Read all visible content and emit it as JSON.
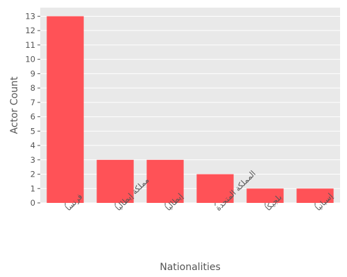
{
  "chart_data": {
    "type": "bar",
    "categories": [
      "فرنسا",
      "مملكة إيطاليا",
      "إيطاليا",
      "المملكة المتحدة",
      "بلجيكا",
      "إسبانيا"
    ],
    "values": [
      13,
      3,
      3,
      2,
      1,
      1
    ],
    "xlabel": "Nationalities",
    "ylabel": "Actor Count",
    "ylim": [
      0,
      13.6
    ],
    "yticks": [
      0,
      1,
      2,
      3,
      4,
      5,
      6,
      7,
      8,
      9,
      10,
      11,
      12,
      13
    ],
    "grid": true,
    "colors": {
      "bar": "#ff5257",
      "plot_background": "#e9e9e9",
      "grid": "#ffffff",
      "text": "#555555"
    }
  }
}
